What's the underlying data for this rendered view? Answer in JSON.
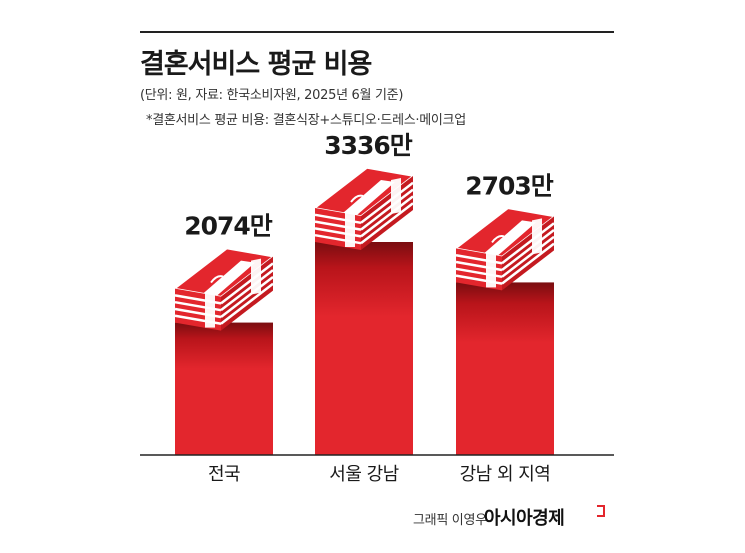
{
  "header": {
    "title": "결혼서비스 평균 비용",
    "source": "(단위: 원, 자료: 한국소비자원, 2025년 6월 기준)",
    "footnote": "*결혼서비스 평균 비용: 결혼식장+스튜디오·드레스·메이크업"
  },
  "chart_data": {
    "type": "bar",
    "title": "결혼서비스 평균 비용",
    "unit": "원",
    "categories": [
      "전국",
      "서울 강남",
      "강남 외 지역"
    ],
    "values": [
      2074,
      3336,
      2703
    ],
    "value_labels": [
      "2074만",
      "3336만",
      "2703만"
    ],
    "ylim": [
      0,
      3336
    ],
    "grid": false,
    "legend": "none",
    "colors": {
      "bar_top": "#e3262d",
      "bar_shade": "#7a0d10",
      "bar_fade": "#e3262d",
      "money_face": "#e3262d",
      "money_stripe": "#ffffff",
      "axis": "#222222"
    }
  },
  "footer": {
    "credit": "그래픽 이영우",
    "brand": "아시아경제",
    "brand_icon": "red-flag-icon"
  }
}
